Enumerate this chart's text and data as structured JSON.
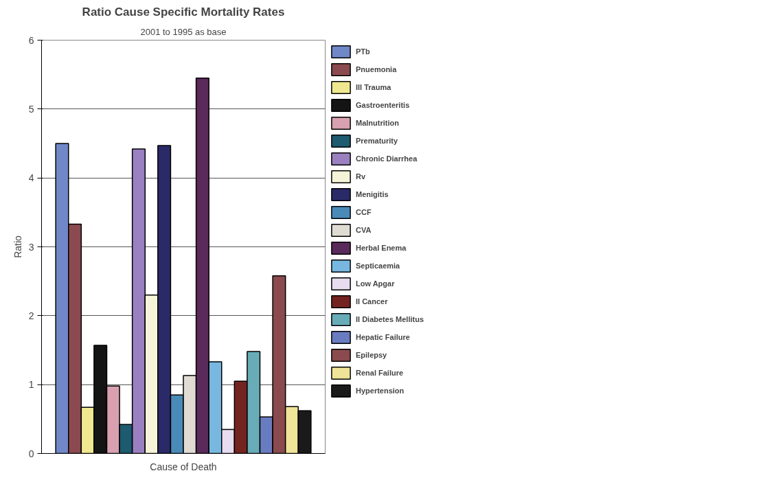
{
  "chart_data": {
    "type": "bar",
    "title": "Ratio Cause Specific Mortality Rates",
    "subtitle": "2001 to 1995 as base",
    "xlabel": "Cause of Death",
    "ylabel": "Ratio",
    "categories": [
      null
    ],
    "series": [
      {
        "name": "PTb",
        "color": "#7088c8",
        "values": [
          4.5
        ]
      },
      {
        "name": "Pnuemonia",
        "color": "#8a4a50",
        "values": [
          3.33
        ]
      },
      {
        "name": "Ill Trauma",
        "color": "#f0e890",
        "values": [
          0.67
        ]
      },
      {
        "name": "Gastroenteritis",
        "color": "#141414",
        "values": [
          1.57
        ]
      },
      {
        "name": "Malnutrition",
        "color": "#d8a0b0",
        "values": [
          0.98
        ]
      },
      {
        "name": "Prematurity",
        "color": "#1e5a70",
        "values": [
          0.42
        ]
      },
      {
        "name": "Chronic Diarrhea",
        "color": "#9a80c0",
        "values": [
          4.42
        ]
      },
      {
        "name": "Rv",
        "color": "#f6f4d8",
        "values": [
          2.3
        ]
      },
      {
        "name": "Menigitis",
        "color": "#2a2a68",
        "values": [
          4.47
        ]
      },
      {
        "name": "CCF",
        "color": "#4a8ab8",
        "values": [
          0.85
        ]
      },
      {
        "name": "CVA",
        "color": "#e0dcd4",
        "values": [
          1.13
        ]
      },
      {
        "name": "Herbal Enema",
        "color": "#5a2a5a",
        "values": [
          5.45
        ]
      },
      {
        "name": "Septicaemia",
        "color": "#78b8e0",
        "values": [
          1.33
        ]
      },
      {
        "name": "Low Apgar",
        "color": "#e8dcf0",
        "values": [
          0.35
        ]
      },
      {
        "name": "II Cancer",
        "color": "#742420",
        "values": [
          1.05
        ]
      },
      {
        "name": "II Diabetes Mellitus",
        "color": "#68acb8",
        "values": [
          1.48
        ]
      },
      {
        "name": "Hepatic Failure",
        "color": "#6a7cc0",
        "values": [
          0.53
        ]
      },
      {
        "name": "Epilepsy",
        "color": "#8a4a4e",
        "values": [
          2.58
        ]
      },
      {
        "name": "Renal Failure",
        "color": "#f0e498",
        "values": [
          0.68
        ]
      },
      {
        "name": "Hypertension",
        "color": "#1a1a1a",
        "values": [
          0.62
        ]
      }
    ],
    "ylim": [
      0,
      6
    ],
    "yticks": [
      0,
      1,
      2,
      3,
      4,
      5,
      6
    ],
    "grid": "y",
    "legend": "right"
  }
}
